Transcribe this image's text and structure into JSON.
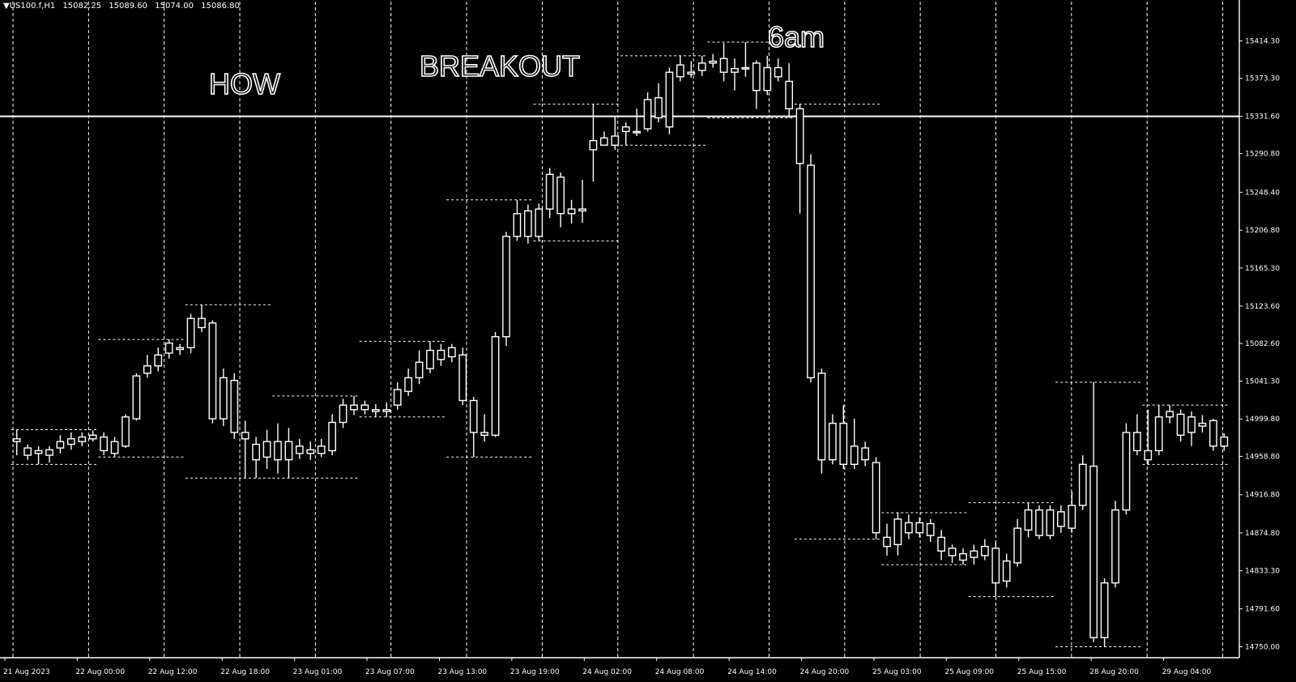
{
  "header": {
    "symbol": "▼US100.f,H1",
    "o": "15082.25",
    "h": "15089.60",
    "l": "15074.00",
    "c": "15086.80"
  },
  "colors": {
    "background": "#000000",
    "foreground": "#ffffff"
  },
  "chart_data": {
    "type": "candlestick",
    "title": "",
    "price_axis_ticks": [
      "15414.30",
      "15373.30",
      "15331.60",
      "15290.80",
      "15248.40",
      "15206.80",
      "15165.30",
      "15123.60",
      "15082.60",
      "15041.30",
      "14999.80",
      "14958.80",
      "14916.80",
      "14874.80",
      "14833.30",
      "14791.60",
      "14750.00"
    ],
    "ylim": [
      14738,
      15445
    ],
    "time_axis_labels": [
      "21 Aug 2023",
      "22 Aug 00:00",
      "22 Aug 12:00",
      "22 Aug 18:00",
      "23 Aug 01:00",
      "23 Aug 07:00",
      "23 Aug 13:00",
      "23 Aug 19:00",
      "24 Aug 02:00",
      "24 Aug 08:00",
      "24 Aug 14:00",
      "24 Aug 20:00",
      "25 Aug 03:00",
      "25 Aug 09:00",
      "25 Aug 15:00",
      "28 Aug 20:00",
      "29 Aug 04:00"
    ],
    "annotations": [
      "HOW",
      "BREAKOUT",
      "6am"
    ],
    "horizontal_line": 15331.6,
    "session_separators": 17,
    "candles": [
      [
        14978,
        14975,
        14988,
        14960
      ],
      [
        14960,
        14968,
        14972,
        14955
      ],
      [
        14962,
        14965,
        14970,
        14950
      ],
      [
        14960,
        14966,
        14970,
        14952
      ],
      [
        14968,
        14975,
        14982,
        14962
      ],
      [
        14972,
        14978,
        14985,
        14966
      ],
      [
        14975,
        14980,
        14985,
        14970
      ],
      [
        14978,
        14982,
        14987,
        14975
      ],
      [
        14980,
        14965,
        14985,
        14960
      ],
      [
        14962,
        14975,
        14980,
        14958
      ],
      [
        14970,
        15002,
        15005,
        14968
      ],
      [
        15000,
        15047,
        15050,
        14998
      ],
      [
        15050,
        15058,
        15070,
        15045
      ],
      [
        15058,
        15070,
        15078,
        15052
      ],
      [
        15072,
        15083,
        15087,
        15066
      ],
      [
        15076,
        15078,
        15082,
        15070
      ],
      [
        15078,
        15110,
        15115,
        15072
      ],
      [
        15110,
        15100,
        15125,
        15095
      ],
      [
        15105,
        15000,
        15108,
        14995
      ],
      [
        15000,
        15045,
        15055,
        14992
      ],
      [
        15042,
        14985,
        15050,
        14978
      ],
      [
        14985,
        14978,
        14998,
        14935
      ],
      [
        14972,
        14955,
        14980,
        14935
      ],
      [
        14958,
        14975,
        14988,
        14945
      ],
      [
        14975,
        14955,
        14995,
        14940
      ],
      [
        14955,
        14975,
        14990,
        14935
      ],
      [
        14970,
        14962,
        14978,
        14956
      ],
      [
        14962,
        14966,
        14975,
        14955
      ],
      [
        14962,
        14970,
        14978,
        14958
      ],
      [
        14965,
        14996,
        15005,
        14960
      ],
      [
        14996,
        15015,
        15022,
        14990
      ],
      [
        15010,
        15015,
        15025,
        15004
      ],
      [
        15015,
        15010,
        15020,
        15005
      ],
      [
        15010,
        15008,
        15016,
        15002
      ],
      [
        15008,
        15010,
        15018,
        15002
      ],
      [
        15015,
        15032,
        15040,
        15010
      ],
      [
        15030,
        15045,
        15055,
        15025
      ],
      [
        15045,
        15062,
        15075,
        15038
      ],
      [
        15055,
        15075,
        15085,
        15050
      ],
      [
        15075,
        15065,
        15082,
        15058
      ],
      [
        15068,
        15078,
        15082,
        15062
      ],
      [
        15070,
        15020,
        15078,
        15015
      ],
      [
        15020,
        14985,
        15024,
        14958
      ],
      [
        14985,
        14982,
        15005,
        14975
      ],
      [
        14982,
        15090,
        15095,
        14980
      ],
      [
        15090,
        15200,
        15205,
        15080
      ],
      [
        15200,
        15225,
        15240,
        15195
      ],
      [
        15228,
        15200,
        15235,
        15192
      ],
      [
        15200,
        15230,
        15236,
        15195
      ],
      [
        15230,
        15268,
        15275,
        15220
      ],
      [
        15265,
        15225,
        15270,
        15210
      ],
      [
        15225,
        15230,
        15240,
        15214
      ],
      [
        15228,
        15230,
        15262,
        15215
      ],
      [
        15305,
        15295,
        15345,
        15260
      ],
      [
        15300,
        15308,
        15315,
        15300
      ],
      [
        15300,
        15310,
        15332,
        15295
      ],
      [
        15320,
        15315,
        15325,
        15300
      ],
      [
        15315,
        15315,
        15340,
        15310
      ],
      [
        15318,
        15350,
        15358,
        15315
      ],
      [
        15352,
        15330,
        15368,
        15325
      ],
      [
        15320,
        15380,
        15385,
        15312
      ],
      [
        15375,
        15388,
        15398,
        15370
      ],
      [
        15378,
        15380,
        15392,
        15374
      ],
      [
        15382,
        15390,
        15398,
        15376
      ],
      [
        15390,
        15392,
        15400,
        15385
      ],
      [
        15395,
        15380,
        15412,
        15370
      ],
      [
        15380,
        15384,
        15395,
        15360
      ],
      [
        15385,
        15384,
        15413,
        15375
      ],
      [
        15390,
        15360,
        15393,
        15340
      ],
      [
        15360,
        15385,
        15398,
        15355
      ],
      [
        15385,
        15375,
        15395,
        15370
      ],
      [
        15370,
        15340,
        15390,
        15330
      ],
      [
        15340,
        15280,
        15345,
        15225
      ],
      [
        15278,
        15045,
        15290,
        15040
      ],
      [
        15050,
        14955,
        15055,
        14940
      ],
      [
        14955,
        14995,
        15005,
        14950
      ],
      [
        14995,
        14950,
        15015,
        14945
      ],
      [
        14950,
        14970,
        15000,
        14945
      ],
      [
        14968,
        14955,
        14975,
        14948
      ],
      [
        14952,
        14875,
        14958,
        14868
      ],
      [
        14870,
        14860,
        14885,
        14850
      ],
      [
        14862,
        14890,
        14897,
        14850
      ],
      [
        14886,
        14875,
        14895,
        14868
      ],
      [
        14875,
        14886,
        14892,
        14870
      ],
      [
        14885,
        14872,
        14890,
        14865
      ],
      [
        14870,
        14855,
        14878,
        14845
      ],
      [
        14858,
        14850,
        14862,
        14842
      ],
      [
        14852,
        14845,
        14858,
        14840
      ],
      [
        14848,
        14855,
        14862,
        14840
      ],
      [
        14850,
        14860,
        14868,
        14845
      ],
      [
        14858,
        14820,
        14865,
        14805
      ],
      [
        14822,
        14844,
        14852,
        14815
      ],
      [
        14842,
        14880,
        14890,
        14838
      ],
      [
        14878,
        14900,
        14908,
        14870
      ],
      [
        14900,
        14872,
        14905,
        14868
      ],
      [
        14872,
        14900,
        14905,
        14868
      ],
      [
        14898,
        14882,
        14905,
        14875
      ],
      [
        14880,
        14905,
        14920,
        14875
      ],
      [
        14905,
        14950,
        14960,
        14900
      ],
      [
        14948,
        14760,
        15040,
        14755
      ],
      [
        14760,
        14820,
        14825,
        14750
      ],
      [
        14820,
        14900,
        14910,
        14815
      ],
      [
        14900,
        14985,
        14995,
        14895
      ],
      [
        14985,
        14965,
        15005,
        14960
      ],
      [
        14965,
        14955,
        15010,
        14950
      ],
      [
        14965,
        15002,
        15015,
        14960
      ],
      [
        15002,
        15008,
        15015,
        14995
      ],
      [
        15005,
        14982,
        15010,
        14975
      ],
      [
        15002,
        14985,
        15008,
        14970
      ],
      [
        14992,
        14995,
        15004,
        14985
      ],
      [
        14998,
        14970,
        15000,
        14965
      ],
      [
        14970,
        14980,
        14984,
        14965
      ]
    ]
  }
}
